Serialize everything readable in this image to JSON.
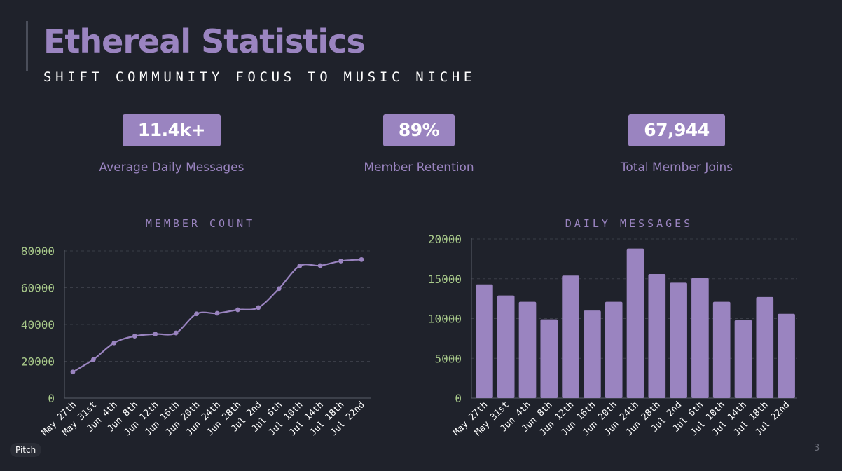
{
  "header": {
    "title": "Ethereal Statistics",
    "subtitle": "SHIFT COMMUNITY FOCUS TO MUSIC NICHE"
  },
  "stats": [
    {
      "value": "11.4k+",
      "label": "Average Daily Messages"
    },
    {
      "value": "89%",
      "label": "Member Retention"
    },
    {
      "value": "67,944",
      "label": "Total Member Joins"
    }
  ],
  "colors": {
    "background": "#1f222b",
    "accent": "#9a84c0",
    "tick": "#a8c98a",
    "grid": "#3a3d47"
  },
  "footer": {
    "logo_text": "Pitch",
    "page_number": "3"
  },
  "chart_data": [
    {
      "type": "line",
      "title": "MEMBER COUNT",
      "categories": [
        "May 27th",
        "May 31st",
        "Jun 4th",
        "Jun 8th",
        "Jun 12th",
        "Jun 16th",
        "Jun 20th",
        "Jun 24th",
        "Jun 28th",
        "Jul 2nd",
        "Jul 6th",
        "Jul 10th",
        "Jul 14th",
        "Jul 18th",
        "Jul 22nd"
      ],
      "values": [
        14200,
        21000,
        30000,
        33700,
        34800,
        35400,
        45800,
        46100,
        48000,
        49200,
        59500,
        71800,
        72000,
        74500,
        75300
      ],
      "ylim": [
        0,
        80000
      ],
      "yticks": [
        0,
        20000,
        40000,
        60000,
        80000
      ],
      "grid": true,
      "color": "#9a84c0"
    },
    {
      "type": "bar",
      "title": "DAILY MESSAGES",
      "categories": [
        "May 27th",
        "May 31st",
        "Jun 4th",
        "Jun 8th",
        "Jun 12th",
        "Jun 16th",
        "Jun 20th",
        "Jun 24th",
        "Jun 28th",
        "Jul 2nd",
        "Jul 6th",
        "Jul 10th",
        "Jul 14th",
        "Jul 18th",
        "Jul 22nd"
      ],
      "values": [
        14300,
        12900,
        12100,
        9900,
        15400,
        11000,
        12100,
        18800,
        15600,
        14500,
        15100,
        12100,
        9800,
        12700,
        10600
      ],
      "ylim": [
        0,
        20000
      ],
      "yticks": [
        0,
        5000,
        10000,
        15000,
        20000
      ],
      "grid": true,
      "color": "#9a84c0"
    }
  ]
}
